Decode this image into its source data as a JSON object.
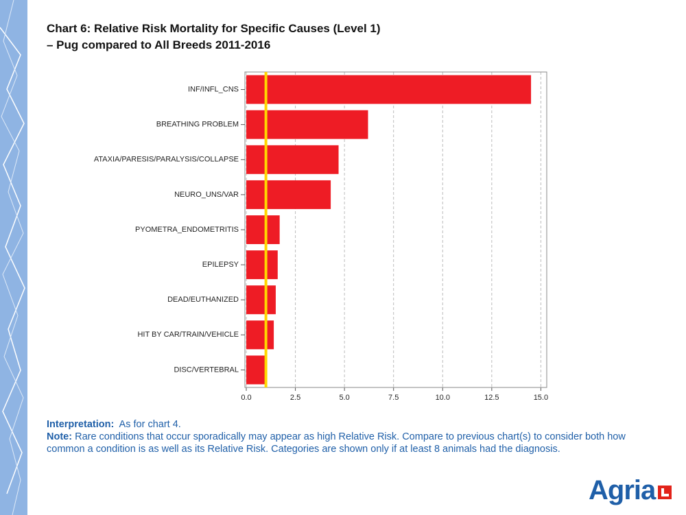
{
  "chart_data": {
    "type": "bar",
    "orientation": "horizontal",
    "title": "Chart 6: Relative Risk Mortality for Specific Causes (Level 1)",
    "subtitle": "–  Pug compared to All Breeds 2011-2016",
    "categories": [
      "INF/INFL_CNS",
      "BREATHING PROBLEM",
      "ATAXIA/PARESIS/PARALYSIS/COLLAPSE",
      "NEURO_UNS/VAR",
      "PYOMETRA_ENDOMETRITIS",
      "EPILEPSY",
      "DEAD/EUTHANIZED",
      "HIT BY CAR/TRAIN/VEHICLE",
      "DISC/VERTEBRAL"
    ],
    "values": [
      14.5,
      6.2,
      4.7,
      4.3,
      1.7,
      1.6,
      1.5,
      1.4,
      1.0
    ],
    "color": "#ee1c25",
    "reference_line": 1.0,
    "reference_color": "#ffd700",
    "xlim": [
      -0.07,
      15.3
    ],
    "xticks": [
      {
        "value": 0,
        "label": "0.0"
      },
      2.5,
      {
        "value": 5,
        "label": "5.0"
      },
      7.5,
      {
        "value": 10,
        "label": "10.0"
      },
      12.5,
      {
        "value": 15,
        "label": "15.0"
      }
    ],
    "grid": true
  },
  "notes": {
    "interpretation_label": "Interpretation:",
    "interpretation_text": "As for chart 4.",
    "note_label": "Note:",
    "note_text": "Rare conditions that occur sporadically may appear as high Relative Risk. Compare to previous chart(s) to consider both how common a condition is as well as its Relative Risk. Categories are shown only if at least 8 animals had the diagnosis."
  },
  "logo": "Agria"
}
